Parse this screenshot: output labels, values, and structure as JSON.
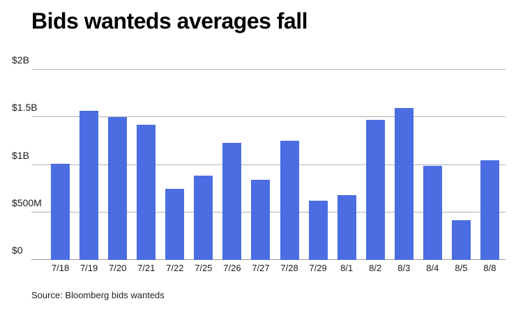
{
  "title": "Bids wanteds averages fall",
  "source_note": "Source: Bloomberg bids wanteds",
  "chart_data": {
    "type": "bar",
    "title": "Bids wanteds averages fall",
    "categories": [
      "7/18",
      "7/19",
      "7/20",
      "7/21",
      "7/22",
      "7/25",
      "7/26",
      "7/27",
      "7/28",
      "7/29",
      "8/1",
      "8/2",
      "8/3",
      "8/4",
      "8/5",
      "8/8"
    ],
    "values_millions": [
      1010,
      1570,
      1500,
      1420,
      750,
      890,
      1230,
      840,
      1250,
      620,
      680,
      1470,
      1600,
      990,
      420,
      1050
    ],
    "xlabel": "",
    "ylabel": "",
    "ylim": [
      0,
      2000
    ],
    "y_ticks": [
      {
        "label": "$0",
        "value": 0
      },
      {
        "label": "$500M",
        "value": 500
      },
      {
        "label": "$1B",
        "value": 1000
      },
      {
        "label": "$1.5B",
        "value": 1500
      },
      {
        "label": "$2B",
        "value": 2000
      }
    ],
    "grid": true,
    "legend_position": "none",
    "bar_color": "#4a6de2",
    "gridline_color": "#b3b3b3",
    "baseline_color": "#9a9a9a",
    "title_color": "#000000",
    "tick_label_color": "#1a1a1a"
  }
}
